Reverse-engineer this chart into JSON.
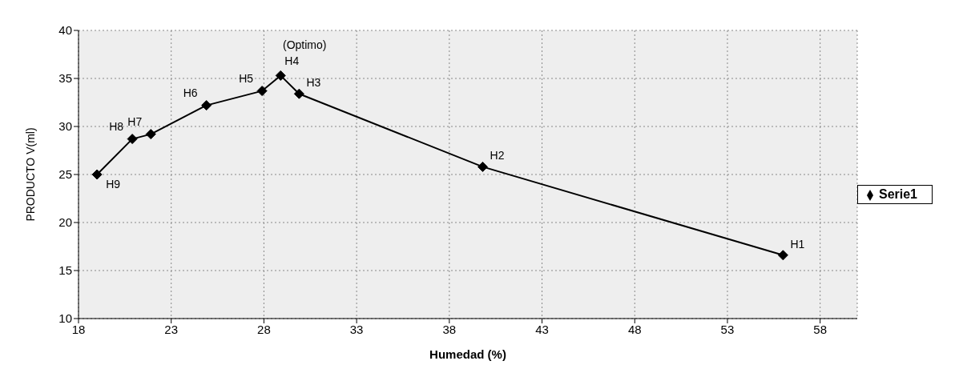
{
  "chart_data": {
    "type": "line",
    "xlabel": "Humedad (%)",
    "ylabel": "PRODUCTO V(ml)",
    "x": [
      56,
      39.8,
      29.9,
      28.9,
      27.9,
      24.9,
      21.9,
      20.9,
      19
    ],
    "series": [
      {
        "name": "Serie1",
        "color": "#000000",
        "values": [
          16.6,
          25.8,
          33.4,
          35.3,
          33.7,
          32.2,
          29.2,
          28.7,
          25
        ]
      }
    ],
    "xlim": [
      18,
      60
    ],
    "xticks": [
      18,
      23,
      28,
      33,
      38,
      43,
      48,
      53,
      58
    ],
    "ylim": [
      10,
      40
    ],
    "yticks": [
      10,
      15,
      20,
      25,
      30,
      35,
      40
    ],
    "grid": true,
    "legend": "right",
    "marker": "diamond",
    "line_style": "solid",
    "annotations": [
      {
        "text": "H1",
        "x": 56,
        "y": 16.6
      },
      {
        "text": "H2",
        "x": 39.8,
        "y": 25.8
      },
      {
        "text": "H3",
        "x": 29.9,
        "y": 33.4
      },
      {
        "text": "H4",
        "x": 28.9,
        "y": 35.3
      },
      {
        "text": "H5",
        "x": 27.9,
        "y": 33.7
      },
      {
        "text": "H6",
        "x": 24.9,
        "y": 32.2
      },
      {
        "text": "H7",
        "x": 21.9,
        "y": 29.2
      },
      {
        "text": "H8",
        "x": 20.9,
        "y": 28.7
      },
      {
        "text": "H9",
        "x": 19,
        "y": 25
      },
      {
        "text": "(Optimo)",
        "x": 28.9,
        "y": 35.3
      }
    ]
  }
}
